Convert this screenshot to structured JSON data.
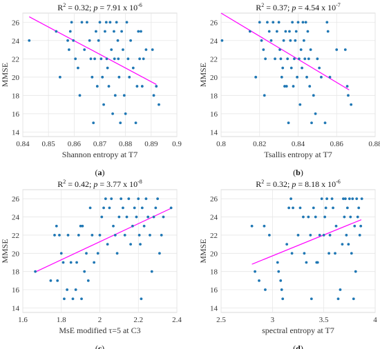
{
  "chart_data": [
    {
      "type": "scatter",
      "panel_label": "a",
      "stat_text": {
        "r2": "0.32",
        "p": "7.91 x 10",
        "p_exp": "-6"
      },
      "xlabel": "Shannon entropy at T7",
      "ylabel": "MMSE",
      "xlim": [
        0.84,
        0.9
      ],
      "ylim": [
        13.5,
        27
      ],
      "xticks": [
        0.84,
        0.85,
        0.86,
        0.87,
        0.88,
        0.89,
        0.9
      ],
      "xtick_labels": [
        "0.84",
        "0.85",
        "0.86",
        "0.87",
        "0.88",
        "0.89",
        "0.9"
      ],
      "yticks": [
        14,
        16,
        18,
        20,
        22,
        24,
        26
      ],
      "grid": true,
      "points_color": "#1f77b4",
      "trend_color": "#ff00ff",
      "fit_line": {
        "x": [
          0.8425,
          0.892
        ],
        "y": [
          26.6,
          19.2
        ]
      },
      "points": [
        [
          0.8425,
          24
        ],
        [
          0.853,
          25
        ],
        [
          0.8545,
          20
        ],
        [
          0.8575,
          24
        ],
        [
          0.858,
          23
        ],
        [
          0.8585,
          25
        ],
        [
          0.859,
          26
        ],
        [
          0.8597,
          24
        ],
        [
          0.8605,
          22
        ],
        [
          0.8615,
          21
        ],
        [
          0.8622,
          18
        ],
        [
          0.863,
          26
        ],
        [
          0.864,
          23
        ],
        [
          0.865,
          26
        ],
        [
          0.866,
          24
        ],
        [
          0.8665,
          22
        ],
        [
          0.867,
          20
        ],
        [
          0.8675,
          15
        ],
        [
          0.868,
          22
        ],
        [
          0.8685,
          25
        ],
        [
          0.869,
          19
        ],
        [
          0.8695,
          24
        ],
        [
          0.87,
          26
        ],
        [
          0.8705,
          22
        ],
        [
          0.871,
          20
        ],
        [
          0.8715,
          17
        ],
        [
          0.872,
          25
        ],
        [
          0.8725,
          26
        ],
        [
          0.8727,
          22
        ],
        [
          0.873,
          21
        ],
        [
          0.8735,
          19
        ],
        [
          0.874,
          26
        ],
        [
          0.8745,
          23
        ],
        [
          0.875,
          16
        ],
        [
          0.8755,
          25
        ],
        [
          0.8757,
          22
        ],
        [
          0.876,
          18
        ],
        [
          0.8765,
          26
        ],
        [
          0.877,
          24
        ],
        [
          0.8772,
          22
        ],
        [
          0.8775,
          20
        ],
        [
          0.878,
          15
        ],
        [
          0.8785,
          25
        ],
        [
          0.879,
          23
        ],
        [
          0.8795,
          18
        ],
        [
          0.88,
          16
        ],
        [
          0.8805,
          26
        ],
        [
          0.881,
          22
        ],
        [
          0.8815,
          20
        ],
        [
          0.882,
          24
        ],
        [
          0.883,
          21
        ],
        [
          0.884,
          15
        ],
        [
          0.8845,
          19
        ],
        [
          0.885,
          25
        ],
        [
          0.8855,
          22
        ],
        [
          0.886,
          25
        ],
        [
          0.8865,
          19
        ],
        [
          0.887,
          22
        ],
        [
          0.888,
          23
        ],
        [
          0.8905,
          23
        ],
        [
          0.891,
          18
        ],
        [
          0.892,
          19
        ],
        [
          0.893,
          17
        ]
      ]
    },
    {
      "type": "scatter",
      "panel_label": "b",
      "stat_text": {
        "r2": "0.37",
        "p": "4.54 x 10",
        "p_exp": "-7"
      },
      "xlabel": "Tsallis entropy at T7",
      "ylabel": "MMSE",
      "xlim": [
        0.8,
        0.88
      ],
      "ylim": [
        13.5,
        27
      ],
      "xticks": [
        0.8,
        0.82,
        0.84,
        0.86,
        0.88
      ],
      "xtick_labels": [
        "0.8",
        "0.82",
        "0.84",
        "0.86",
        "0.88"
      ],
      "yticks": [
        14,
        16,
        18,
        20,
        22,
        24,
        26
      ],
      "grid": true,
      "points_color": "#1f77b4",
      "trend_color": "#ff00ff",
      "fit_line": {
        "x": [
          0.8,
          0.8665
        ],
        "y": [
          27.0,
          18.6
        ]
      },
      "points": [
        [
          0.8005,
          24
        ],
        [
          0.815,
          25
        ],
        [
          0.818,
          20
        ],
        [
          0.82,
          26
        ],
        [
          0.821,
          24
        ],
        [
          0.822,
          23
        ],
        [
          0.8225,
          18
        ],
        [
          0.823,
          22
        ],
        [
          0.824,
          26
        ],
        [
          0.825,
          25
        ],
        [
          0.826,
          24
        ],
        [
          0.827,
          26
        ],
        [
          0.828,
          22
        ],
        [
          0.829,
          25
        ],
        [
          0.83,
          26
        ],
        [
          0.8305,
          23
        ],
        [
          0.831,
          22
        ],
        [
          0.8315,
          20
        ],
        [
          0.832,
          21
        ],
        [
          0.8325,
          24
        ],
        [
          0.833,
          19
        ],
        [
          0.8335,
          25
        ],
        [
          0.834,
          19
        ],
        [
          0.8345,
          22
        ],
        [
          0.835,
          15
        ],
        [
          0.8355,
          25
        ],
        [
          0.836,
          24
        ],
        [
          0.8365,
          21
        ],
        [
          0.837,
          26
        ],
        [
          0.8375,
          19
        ],
        [
          0.838,
          22
        ],
        [
          0.8385,
          24
        ],
        [
          0.839,
          25
        ],
        [
          0.8395,
          20
        ],
        [
          0.84,
          26
        ],
        [
          0.8405,
          22
        ],
        [
          0.841,
          17
        ],
        [
          0.8415,
          23
        ],
        [
          0.842,
          21
        ],
        [
          0.8425,
          26
        ],
        [
          0.843,
          24
        ],
        [
          0.8435,
          22
        ],
        [
          0.844,
          26
        ],
        [
          0.8445,
          20
        ],
        [
          0.845,
          25
        ],
        [
          0.8455,
          22
        ],
        [
          0.846,
          19
        ],
        [
          0.8465,
          23
        ],
        [
          0.847,
          15
        ],
        [
          0.848,
          18
        ],
        [
          0.849,
          16
        ],
        [
          0.85,
          22
        ],
        [
          0.851,
          21
        ],
        [
          0.852,
          20
        ],
        [
          0.854,
          15
        ],
        [
          0.855,
          26
        ],
        [
          0.8555,
          25
        ],
        [
          0.8565,
          20
        ],
        [
          0.86,
          23
        ],
        [
          0.8645,
          23
        ],
        [
          0.8655,
          19
        ],
        [
          0.866,
          18
        ],
        [
          0.8675,
          17
        ]
      ]
    },
    {
      "type": "scatter",
      "panel_label": "c",
      "stat_text": {
        "r2": "0.42",
        "p": "3.77 x 10",
        "p_exp": "-8"
      },
      "xlabel": "MsE modified τ=5 at C3",
      "ylabel": "MMSE",
      "xlim": [
        1.6,
        2.4
      ],
      "ylim": [
        13.5,
        27
      ],
      "xticks": [
        1.6,
        1.8,
        2.0,
        2.2,
        2.4
      ],
      "xtick_labels": [
        "1.6",
        "1.8",
        "2",
        "2.2",
        "2.4"
      ],
      "yticks": [
        14,
        16,
        18,
        20,
        22,
        24,
        26
      ],
      "grid": true,
      "points_color": "#1f77b4",
      "trend_color": "#ff00ff",
      "fit_line": {
        "x": [
          1.67,
          2.375
        ],
        "y": [
          18.0,
          25.0
        ]
      },
      "points": [
        [
          1.665,
          18
        ],
        [
          1.745,
          17
        ],
        [
          1.765,
          22
        ],
        [
          1.775,
          23
        ],
        [
          1.78,
          17
        ],
        [
          1.79,
          22
        ],
        [
          1.8,
          20
        ],
        [
          1.81,
          19
        ],
        [
          1.815,
          15
        ],
        [
          1.83,
          16
        ],
        [
          1.835,
          22
        ],
        [
          1.85,
          19
        ],
        [
          1.86,
          15
        ],
        [
          1.875,
          16
        ],
        [
          1.88,
          19
        ],
        [
          1.89,
          22
        ],
        [
          1.9,
          23
        ],
        [
          1.905,
          15
        ],
        [
          1.91,
          23
        ],
        [
          1.92,
          18
        ],
        [
          1.93,
          20
        ],
        [
          1.94,
          17
        ],
        [
          1.95,
          25
        ],
        [
          1.96,
          22
        ],
        [
          1.97,
          19
        ],
        [
          1.99,
          20
        ],
        [
          2.0,
          22
        ],
        [
          2.01,
          24
        ],
        [
          2.02,
          25
        ],
        [
          2.03,
          26
        ],
        [
          2.04,
          21
        ],
        [
          2.05,
          25
        ],
        [
          2.06,
          26
        ],
        [
          2.07,
          23
        ],
        [
          2.08,
          22
        ],
        [
          2.09,
          20
        ],
        [
          2.1,
          24
        ],
        [
          2.11,
          26
        ],
        [
          2.12,
          25
        ],
        [
          2.13,
          22
        ],
        [
          2.14,
          24
        ],
        [
          2.15,
          26
        ],
        [
          2.16,
          21
        ],
        [
          2.17,
          23
        ],
        [
          2.18,
          25
        ],
        [
          2.19,
          24
        ],
        [
          2.2,
          26
        ],
        [
          2.205,
          22
        ],
        [
          2.21,
          21
        ],
        [
          2.215,
          15
        ],
        [
          2.22,
          25
        ],
        [
          2.23,
          23
        ],
        [
          2.24,
          26
        ],
        [
          2.25,
          24
        ],
        [
          2.26,
          22
        ],
        [
          2.27,
          18
        ],
        [
          2.28,
          24
        ],
        [
          2.29,
          25
        ],
        [
          2.3,
          26
        ],
        [
          2.31,
          20
        ],
        [
          2.32,
          22
        ],
        [
          2.33,
          24
        ],
        [
          2.37,
          25
        ]
      ]
    },
    {
      "type": "scatter",
      "panel_label": "d",
      "stat_text": {
        "r2": "0.32",
        "p": "8.18 x 10",
        "p_exp": "-6"
      },
      "xlabel": "spectral entropy at T7",
      "ylabel": "MMSE",
      "xlim": [
        2.5,
        4.0
      ],
      "ylim": [
        13.5,
        27
      ],
      "xticks": [
        2.5,
        3.0,
        3.5,
        4.0
      ],
      "xtick_labels": [
        "2.5",
        "3",
        "3.5",
        "4"
      ],
      "yticks": [
        14,
        16,
        18,
        20,
        22,
        24,
        26
      ],
      "grid": true,
      "points_color": "#1f77b4",
      "trend_color": "#ff00ff",
      "fit_line": {
        "x": [
          2.8,
          3.865
        ],
        "y": [
          18.8,
          23.7
        ]
      },
      "points": [
        [
          2.8,
          23
        ],
        [
          2.83,
          18
        ],
        [
          2.87,
          17
        ],
        [
          2.92,
          23
        ],
        [
          2.93,
          16
        ],
        [
          2.97,
          22
        ],
        [
          3.05,
          19
        ],
        [
          3.06,
          18
        ],
        [
          3.08,
          17
        ],
        [
          3.09,
          16
        ],
        [
          3.1,
          15
        ],
        [
          3.14,
          21
        ],
        [
          3.16,
          25
        ],
        [
          3.18,
          26
        ],
        [
          3.19,
          20
        ],
        [
          3.2,
          25
        ],
        [
          3.25,
          22
        ],
        [
          3.27,
          25
        ],
        [
          3.3,
          24
        ],
        [
          3.31,
          20
        ],
        [
          3.33,
          19
        ],
        [
          3.35,
          24
        ],
        [
          3.37,
          22
        ],
        [
          3.38,
          15
        ],
        [
          3.4,
          25
        ],
        [
          3.42,
          24
        ],
        [
          3.43,
          19
        ],
        [
          3.44,
          19
        ],
        [
          3.46,
          22
        ],
        [
          3.48,
          26
        ],
        [
          3.5,
          22
        ],
        [
          3.51,
          24
        ],
        [
          3.52,
          25
        ],
        [
          3.53,
          26
        ],
        [
          3.55,
          20
        ],
        [
          3.56,
          22
        ],
        [
          3.58,
          26
        ],
        [
          3.59,
          25
        ],
        [
          3.61,
          20
        ],
        [
          3.62,
          23
        ],
        [
          3.64,
          15
        ],
        [
          3.66,
          16
        ],
        [
          3.68,
          21
        ],
        [
          3.69,
          26
        ],
        [
          3.7,
          24
        ],
        [
          3.71,
          26
        ],
        [
          3.72,
          22
        ],
        [
          3.73,
          25
        ],
        [
          3.74,
          21
        ],
        [
          3.75,
          26
        ],
        [
          3.76,
          24
        ],
        [
          3.77,
          20
        ],
        [
          3.78,
          26
        ],
        [
          3.79,
          15
        ],
        [
          3.8,
          23
        ],
        [
          3.81,
          18
        ],
        [
          3.82,
          26
        ],
        [
          3.83,
          24
        ],
        [
          3.84,
          25
        ],
        [
          3.85,
          22
        ],
        [
          3.86,
          23
        ],
        [
          3.87,
          26
        ]
      ]
    }
  ]
}
